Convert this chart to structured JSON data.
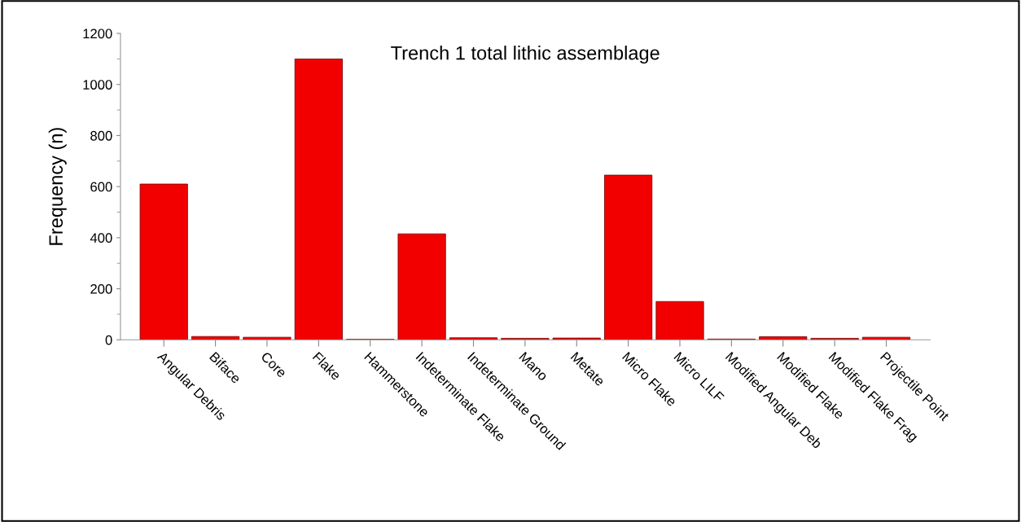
{
  "chart_data": {
    "type": "bar",
    "title": "Trench 1 total lithic assemblage",
    "ylabel": "Frequency (n)",
    "categories": [
      "Angular Debris",
      "Biface",
      "Core",
      "Flake",
      "Hammerstone",
      "Indeterminate Flake",
      "Indeterminate Ground",
      "Mano",
      "Metate",
      "Micro Flake",
      "Micro LILF",
      "Modified Angular Deb",
      "Modified Flake",
      "Modified Flake Frag",
      "Projectile Point"
    ],
    "values": [
      610,
      13,
      10,
      1100,
      2,
      415,
      8,
      6,
      7,
      645,
      150,
      3,
      12,
      6,
      10
    ],
    "color": "#f20000",
    "ylim": [
      0,
      1200
    ],
    "yticks": [
      0,
      200,
      400,
      600,
      800,
      1000,
      1200
    ],
    "grid": false,
    "legend": false
  }
}
